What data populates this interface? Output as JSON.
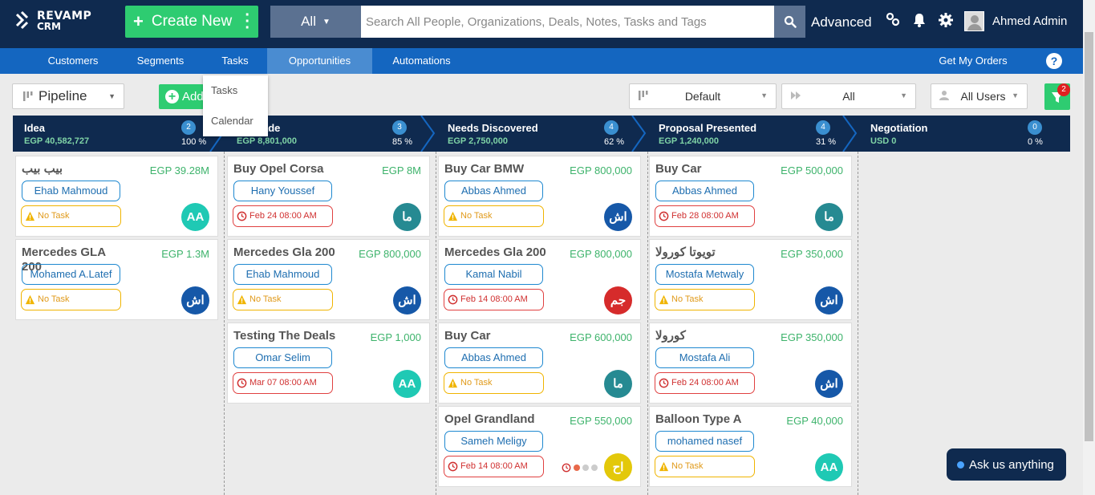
{
  "brand": {
    "line1": "REVAMP",
    "line2": "CRM"
  },
  "header": {
    "create_label": "Create New",
    "search_scope": "All",
    "search_placeholder": "Search All People, Organizations, Deals, Notes, Tasks and Tags",
    "advanced_label": "Advanced",
    "user_name": "Ahmed Admin"
  },
  "nav": {
    "items": [
      "Customers",
      "Segments",
      "Tasks",
      "Opportunities",
      "Automations"
    ],
    "active": "Opportunities",
    "right_label": "Get My Orders",
    "help": "?"
  },
  "tasks_menu": [
    "Tasks",
    "Calendar"
  ],
  "toolbar": {
    "pipeline_label": "Pipeline",
    "add_label": "Add",
    "default_label": "Default",
    "all_label": "All",
    "users_label": "All Users",
    "filter_count": "2"
  },
  "stages": [
    {
      "name": "Idea",
      "amount": "EGP 40,582,727",
      "count": "2",
      "percent": "100 %"
    },
    {
      "name": "ct Made",
      "amount": "EGP 8,801,000",
      "count": "3",
      "percent": "85 %"
    },
    {
      "name": "Needs Discovered",
      "amount": "EGP 2,750,000",
      "count": "4",
      "percent": "62 %"
    },
    {
      "name": "Proposal Presented",
      "amount": "EGP 1,240,000",
      "count": "4",
      "percent": "31 %"
    },
    {
      "name": "Negotiation",
      "amount": "USD 0",
      "count": "0",
      "percent": "0 %"
    }
  ],
  "columns": [
    [
      {
        "title": "بيب بيب",
        "value": "EGP 39.28M",
        "person": "Ehab Mahmoud",
        "task": "No Task",
        "task_type": "none",
        "avatar": "AA",
        "avatar_color": "#1fc9b4"
      },
      {
        "title": "Mercedes GLA 200",
        "value": "EGP 1.3M",
        "person": "Mohamed A.Latef",
        "task": "No Task",
        "task_type": "none",
        "avatar": "اش",
        "avatar_color": "#1658a8"
      }
    ],
    [
      {
        "title": "Buy Opel Corsa",
        "value": "EGP 8M",
        "person": "Hany Youssef",
        "task": "Feb 24 08:00 AM",
        "task_type": "due",
        "avatar": "ما",
        "avatar_color": "#268a92"
      },
      {
        "title": "Mercedes Gla 200",
        "value": "EGP 800,000",
        "person": "Ehab Mahmoud",
        "task": "No Task",
        "task_type": "none",
        "avatar": "اش",
        "avatar_color": "#1658a8"
      },
      {
        "title": "Testing The Deals",
        "value": "EGP 1,000",
        "person": "Omar Selim",
        "task": "Mar 07 08:00 AM",
        "task_type": "due",
        "avatar": "AA",
        "avatar_color": "#1fc9b4"
      }
    ],
    [
      {
        "title": "Buy Car BMW",
        "value": "EGP 800,000",
        "person": "Abbas Ahmed",
        "task": "No Task",
        "task_type": "none",
        "avatar": "اش",
        "avatar_color": "#1658a8"
      },
      {
        "title": "Mercedes Gla 200",
        "value": "EGP 800,000",
        "person": "Kamal Nabil",
        "task": "Feb 14 08:00 AM",
        "task_type": "due",
        "avatar": "جم",
        "avatar_color": "#d62b2b"
      },
      {
        "title": "Buy Car",
        "value": "EGP 600,000",
        "person": "Abbas Ahmed",
        "task": "No Task",
        "task_type": "none",
        "avatar": "ما",
        "avatar_color": "#268a92"
      },
      {
        "title": "Opel Grandland",
        "value": "EGP 550,000",
        "person": "Sameh Meligy",
        "task": "Feb 14 08:00 AM",
        "task_type": "due",
        "avatar": "اح",
        "avatar_color": "#e3c80a"
      }
    ],
    [
      {
        "title": "Buy Car",
        "value": "EGP 500,000",
        "person": "Abbas Ahmed",
        "task": "Feb 28 08:00 AM",
        "task_type": "due",
        "avatar": "ما",
        "avatar_color": "#268a92"
      },
      {
        "title": "تويوتا كورولا",
        "value": "EGP 350,000",
        "person": "Mostafa Metwaly",
        "task": "No Task",
        "task_type": "none",
        "avatar": "اش",
        "avatar_color": "#1658a8"
      },
      {
        "title": "كورولا",
        "value": "EGP 350,000",
        "person": "Mostafa Ali",
        "task": "Feb 24 08:00 AM",
        "task_type": "due",
        "avatar": "اش",
        "avatar_color": "#1658a8"
      },
      {
        "title": "Balloon Type A",
        "value": "EGP 40,000",
        "person": "mohamed nasef",
        "task": "No Task",
        "task_type": "none",
        "avatar": "AA",
        "avatar_color": "#1fc9b4"
      }
    ],
    []
  ],
  "chat": {
    "label": "Ask us anything"
  },
  "colors": {
    "navy": "#0f2a4f",
    "nav_blue": "#1466c0",
    "green": "#2ecc71",
    "value_green": "#3db36b"
  }
}
